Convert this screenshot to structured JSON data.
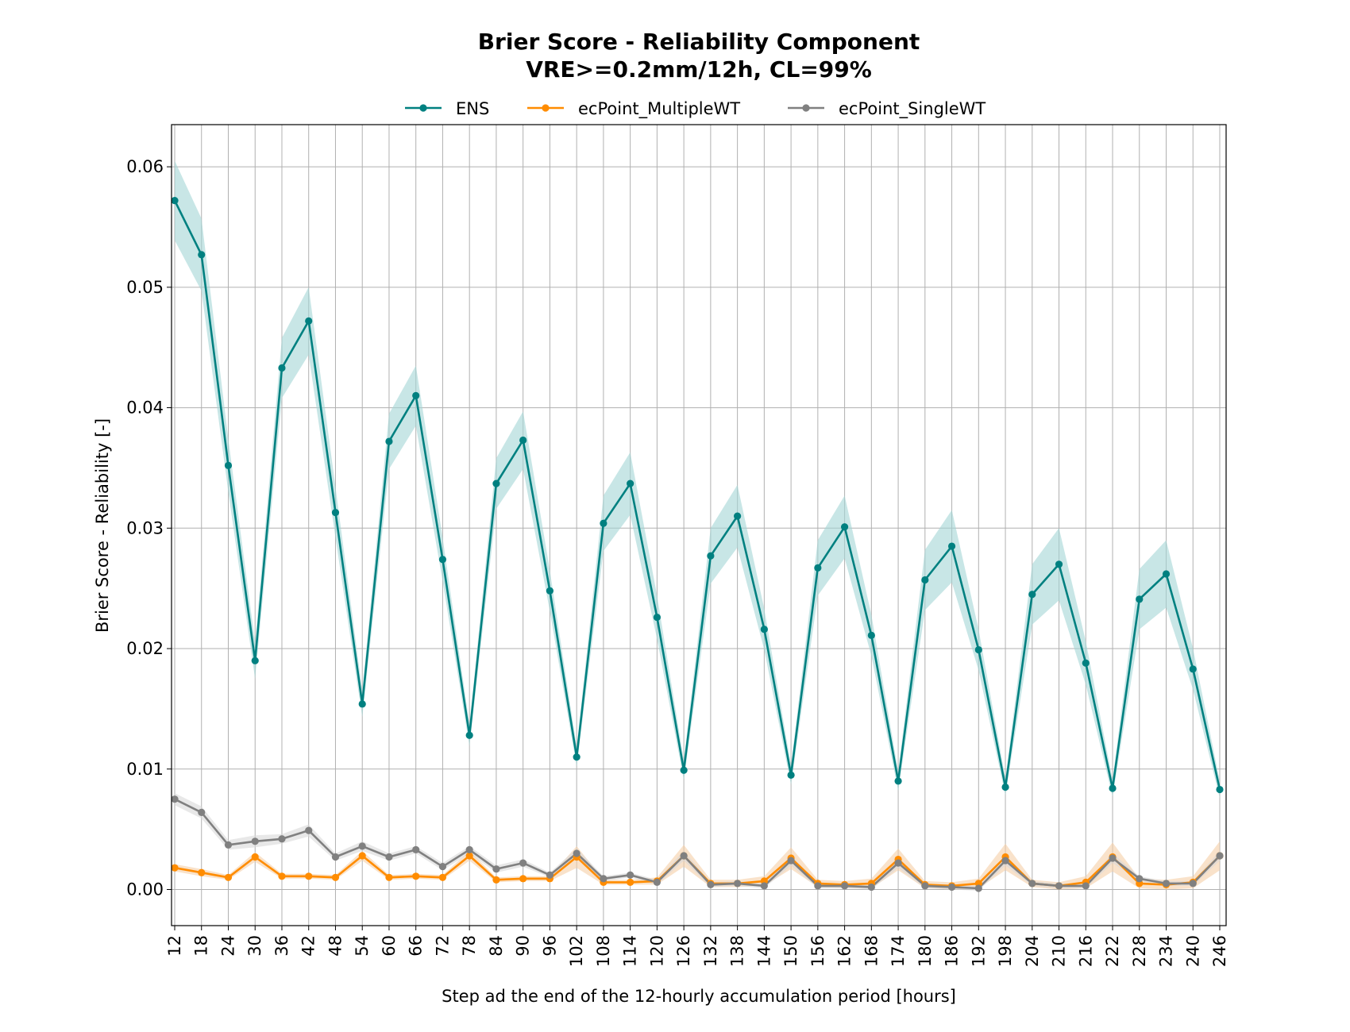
{
  "chart_data": {
    "type": "line",
    "title": "Brier Score - Reliability Component",
    "subtitle": "VRE>=0.2mm/12h, CL=99%",
    "xlabel": "Step ad the end of the 12-hourly accumulation period [hours]",
    "ylabel": "Brier Score - Reliability [-]",
    "ylim": [
      -0.003,
      0.0635
    ],
    "yticks": [
      0.0,
      0.01,
      0.02,
      0.03,
      0.04,
      0.05,
      0.06
    ],
    "ytick_labels": [
      "0.00",
      "0.01",
      "0.02",
      "0.03",
      "0.04",
      "0.05",
      "0.06"
    ],
    "grid": true,
    "legend_position": "top-center",
    "x": [
      "12",
      "18",
      "24",
      "30",
      "36",
      "42",
      "48",
      "54",
      "60",
      "66",
      "72",
      "78",
      "84",
      "90",
      "96",
      "102",
      "108",
      "114",
      "120",
      "126",
      "132",
      "138",
      "144",
      "150",
      "156",
      "162",
      "168",
      "174",
      "180",
      "186",
      "192",
      "198",
      "204",
      "210",
      "216",
      "222",
      "228",
      "234",
      "240",
      "246"
    ],
    "series": [
      {
        "name": "ENS",
        "color": "#008080",
        "band_color": "#a3d5d6",
        "values": [
          0.0572,
          0.0527,
          0.0352,
          0.019,
          0.0433,
          0.0472,
          0.0313,
          0.0154,
          0.0372,
          0.041,
          0.0274,
          0.0128,
          0.0337,
          0.0373,
          0.0248,
          0.011,
          0.0304,
          0.0337,
          0.0226,
          0.0099,
          0.0277,
          0.031,
          0.0216,
          0.0095,
          0.0267,
          0.0301,
          0.0211,
          0.009,
          0.0257,
          0.0285,
          0.0199,
          0.0085,
          0.0245,
          0.027,
          0.0188,
          0.0084,
          0.0241,
          0.0262,
          0.0183,
          0.0083
        ],
        "band_halfwidth": [
          0.0033,
          0.003,
          0.0022,
          0.0015,
          0.0025,
          0.0028,
          0.0021,
          0.0011,
          0.0023,
          0.0025,
          0.0018,
          0.0009,
          0.0021,
          0.0024,
          0.0017,
          0.0008,
          0.0023,
          0.0026,
          0.0018,
          0.0008,
          0.0023,
          0.0026,
          0.0017,
          0.0008,
          0.0023,
          0.0026,
          0.0017,
          0.0008,
          0.0025,
          0.003,
          0.0017,
          0.0007,
          0.0025,
          0.003,
          0.0018,
          0.0007,
          0.0025,
          0.0028,
          0.0017,
          0.0007
        ]
      },
      {
        "name": "ecPoint_MultipleWT",
        "color": "#ff8c00",
        "band_color": "#f5cfa6",
        "values": [
          0.0018,
          0.0014,
          0.001,
          0.0027,
          0.0011,
          0.0011,
          0.001,
          0.0028,
          0.001,
          0.0011,
          0.001,
          0.0028,
          0.0008,
          0.0009,
          0.0009,
          0.0027,
          0.0006,
          0.0006,
          0.0007,
          0.0028,
          0.0005,
          0.0005,
          0.0007,
          0.0026,
          0.0005,
          0.0004,
          0.0005,
          0.0025,
          0.0004,
          0.0003,
          0.0005,
          0.0027,
          0.0005,
          0.0003,
          0.0006,
          0.0027,
          0.0005,
          0.0004,
          0.0006,
          0.0028
        ],
        "band_halfwidth": [
          0.0003,
          0.0003,
          0.0002,
          0.0004,
          0.0002,
          0.0002,
          0.0002,
          0.0004,
          0.0002,
          0.0002,
          0.0002,
          0.0004,
          0.0002,
          0.0002,
          0.0002,
          0.0009,
          0.0002,
          0.0002,
          0.0003,
          0.0009,
          0.0003,
          0.0003,
          0.0004,
          0.0009,
          0.0003,
          0.0003,
          0.0004,
          0.0009,
          0.0003,
          0.0003,
          0.0004,
          0.0011,
          0.0003,
          0.0003,
          0.0005,
          0.0012,
          0.0004,
          0.0004,
          0.0005,
          0.0012
        ]
      },
      {
        "name": "ecPoint_SingleWT",
        "color": "#808080",
        "band_color": "#d9d9d9",
        "values": [
          0.0075,
          0.0064,
          0.0037,
          0.004,
          0.0042,
          0.0049,
          0.0027,
          0.0036,
          0.0027,
          0.0033,
          0.0019,
          0.0033,
          0.0017,
          0.0022,
          0.0012,
          0.003,
          0.0009,
          0.0012,
          0.0006,
          0.0028,
          0.0004,
          0.0005,
          0.0003,
          0.0024,
          0.0003,
          0.0003,
          0.0002,
          0.0022,
          0.0003,
          0.0002,
          0.0001,
          0.0024,
          0.0005,
          0.0003,
          0.0003,
          0.0026,
          0.0009,
          0.0005,
          0.0005,
          0.0028
        ],
        "band_halfwidth": [
          0.0005,
          0.0005,
          0.0004,
          0.0005,
          0.0004,
          0.0005,
          0.0003,
          0.0004,
          0.0003,
          0.0003,
          0.0003,
          0.0003,
          0.0003,
          0.0003,
          0.0002,
          0.0004,
          0.0002,
          0.0002,
          0.0002,
          0.0004,
          0.0002,
          0.0002,
          0.0002,
          0.0004,
          0.0002,
          0.0002,
          0.0002,
          0.0004,
          0.0002,
          0.0002,
          0.0002,
          0.0004,
          0.0002,
          0.0002,
          0.0002,
          0.0004,
          0.0002,
          0.0002,
          0.0002,
          0.0004
        ]
      }
    ]
  }
}
